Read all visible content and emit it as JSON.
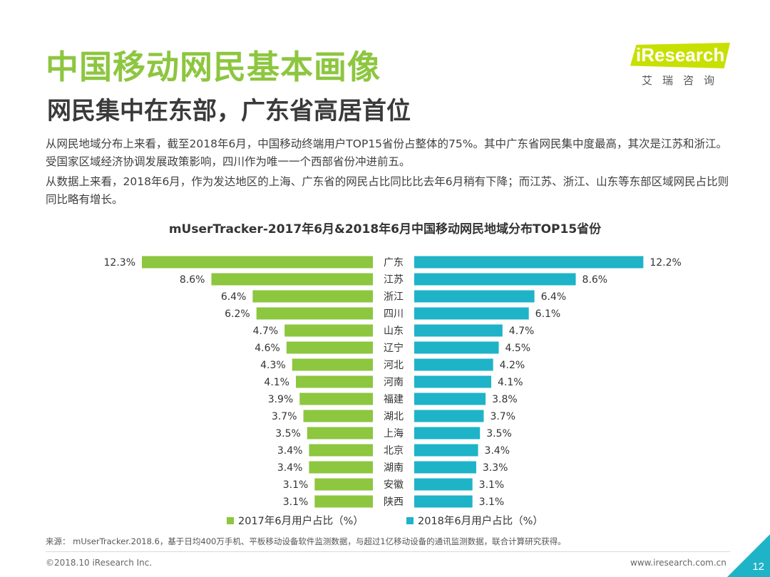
{
  "header": {
    "title": "中国移动网民基本画像",
    "subtitle": "网民集中在东部，广东省高居首位"
  },
  "logo": {
    "name": "iResearch",
    "sub": "艾瑞咨询"
  },
  "body": {
    "para1": "从网民地域分布上来看，截至2018年6月，中国移动终端用户TOP15省份占整体的75%。其中广东省网民集中度最高，其次是江苏和浙江。受国家区域经济协调发展政策影响，四川作为唯一一个西部省份冲进前五。",
    "para2": "从数据上来看，2018年6月，作为发达地区的上海、广东省的网民占比同比比去年6月稍有下降；而江苏、浙江、山东等东部区域网民占比则同比略有增长。"
  },
  "chart_data": {
    "type": "bar",
    "orientation": "horizontal-butterfly",
    "title": "mUserTracker-2017年6月&2018年6月中国移动网民地域分布TOP15省份",
    "categories": [
      "广东",
      "江苏",
      "浙江",
      "四川",
      "山东",
      "辽宁",
      "河北",
      "河南",
      "福建",
      "湖北",
      "上海",
      "北京",
      "湖南",
      "安徽",
      "陕西"
    ],
    "series": [
      {
        "name": "2017年6月用户占比（%）",
        "color": "#8dc63f",
        "values": [
          12.3,
          8.6,
          6.4,
          6.2,
          4.7,
          4.6,
          4.3,
          4.1,
          3.9,
          3.7,
          3.5,
          3.4,
          3.4,
          3.1,
          3.1
        ],
        "labels": [
          "12.3%",
          "8.6%",
          "6.4%",
          "6.2%",
          "4.7%",
          "4.6%",
          "4.3%",
          "4.1%",
          "3.9%",
          "3.7%",
          "3.5%",
          "3.4%",
          "3.4%",
          "3.1%",
          "3.1%"
        ]
      },
      {
        "name": "2018年6月用户占比（%）",
        "color": "#1fb3c8",
        "values": [
          12.2,
          8.6,
          6.4,
          6.1,
          4.7,
          4.5,
          4.2,
          4.1,
          3.8,
          3.7,
          3.5,
          3.4,
          3.3,
          3.1,
          3.1
        ],
        "labels": [
          "12.2%",
          "8.6%",
          "6.4%",
          "6.1%",
          "4.7%",
          "4.5%",
          "4.2%",
          "4.1%",
          "3.8%",
          "3.7%",
          "3.5%",
          "3.4%",
          "3.3%",
          "3.1%",
          "3.1%"
        ]
      }
    ],
    "legend_position": "bottom"
  },
  "footer": {
    "source": "来源： mUserTracker.2018.6，基于日均400万手机、平板移动设备软件监测数据，与超过1亿移动设备的通讯监测数据，联合计算研究获得。",
    "copyright": "©2018.10 iResearch Inc.",
    "url": "www.iresearch.com.cn",
    "page": "12"
  }
}
